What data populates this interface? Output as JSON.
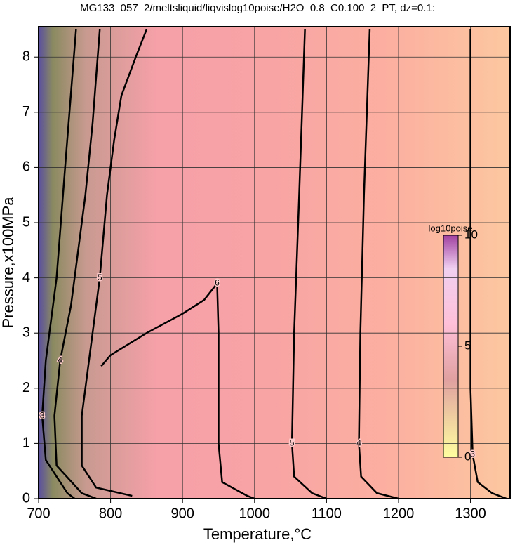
{
  "chart_data": {
    "type": "contour",
    "title": "MG133_057_2/meltsliquid/liqvislog10poise/H2O_0.8_C0.100_2_PT, dz=0.1:",
    "x_label": "Temperature,°C",
    "y_label": "Pressure,x100MPa",
    "xlim": [
      700,
      1355
    ],
    "xticks": [
      700,
      800,
      900,
      1000,
      1100,
      1200,
      1300
    ],
    "ylim": [
      0,
      8.55
    ],
    "yticks": [
      0,
      1,
      2,
      3,
      4,
      5,
      6,
      7,
      8
    ],
    "grid": true,
    "colorbar": {
      "label": "log10poise",
      "lim": [
        0,
        10
      ],
      "ticks": [
        0,
        5,
        10
      ]
    },
    "contours": [
      {
        "level": 3,
        "x": [
          752,
          738,
          725,
          710,
          705,
          710,
          740,
          750
        ],
        "y": [
          8.5,
          6.2,
          4.0,
          2.5,
          1.5,
          0.7,
          0.1,
          0
        ]
      },
      {
        "level": 4,
        "x": [
          785,
          775,
          765,
          745,
          730,
          722,
          725,
          760,
          780
        ],
        "y": [
          8.5,
          6.8,
          5.5,
          3.5,
          2.5,
          1.5,
          0.6,
          0.1,
          0
        ]
      },
      {
        "level": 5,
        "x": [
          850,
          835,
          815,
          805,
          795,
          785,
          770,
          760,
          760,
          780,
          830
        ],
        "y": [
          8.5,
          8.0,
          7.3,
          6.5,
          5.5,
          4.0,
          2.5,
          1.5,
          0.6,
          0.2,
          0.05
        ]
      },
      {
        "level": 6,
        "x": [
          787,
          800,
          850,
          900,
          930,
          948,
          950,
          950,
          955,
          990,
          1000
        ],
        "y": [
          2.4,
          2.6,
          3.0,
          3.35,
          3.6,
          3.9,
          3.0,
          1.0,
          0.3,
          0.05,
          0
        ]
      },
      {
        "level": 5,
        "x": [
          1070,
          1062,
          1055,
          1052,
          1055,
          1080,
          1100
        ],
        "y": [
          8.5,
          5.5,
          3,
          1,
          0.4,
          0.1,
          0
        ]
      },
      {
        "level": 4,
        "x": [
          1160,
          1152,
          1147,
          1145,
          1148,
          1170,
          1200
        ],
        "y": [
          8.5,
          5.5,
          3,
          1,
          0.4,
          0.1,
          0
        ]
      },
      {
        "level": 3,
        "x": [
          1300,
          1300,
          1300,
          1303,
          1310,
          1330,
          1350
        ],
        "y": [
          8.5,
          5.5,
          2,
          0.8,
          0.3,
          0.1,
          0
        ]
      }
    ]
  }
}
